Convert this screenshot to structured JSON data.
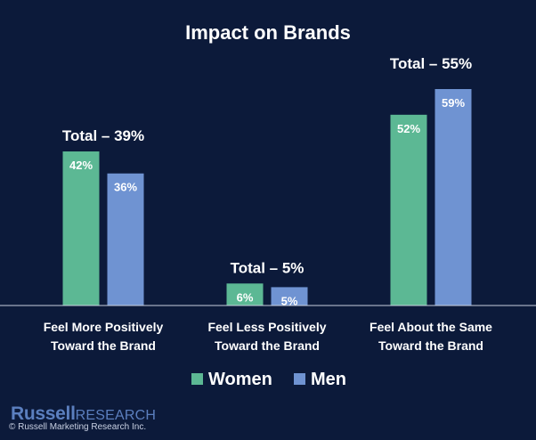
{
  "chart_data": {
    "type": "bar",
    "title": "Impact on Brands",
    "categories": [
      [
        "Feel More Positively",
        "Toward the Brand"
      ],
      [
        "Feel Less Positively",
        "Toward the Brand"
      ],
      [
        "Feel About the Same",
        "Toward the Brand"
      ]
    ],
    "totals": [
      "Total – 39%",
      "Total – 5%",
      "Total – 55%"
    ],
    "series": [
      {
        "name": "Women",
        "color": "#5cb894",
        "values": [
          42,
          6,
          52
        ]
      },
      {
        "name": "Men",
        "color": "#6f93d2",
        "values": [
          36,
          5,
          59
        ]
      }
    ],
    "value_suffix": "%",
    "ylim": [
      0,
      60
    ],
    "grid": false,
    "legend": "bottom"
  },
  "brand": {
    "name": "Russell",
    "suffix": "RESEARCH",
    "copyright": "© Russell Marketing Research Inc."
  }
}
